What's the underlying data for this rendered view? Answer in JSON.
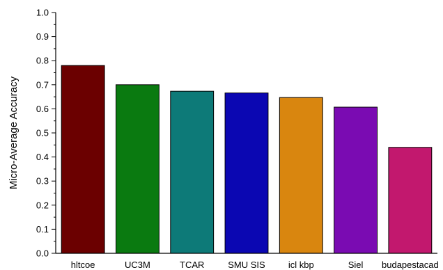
{
  "chart_data": {
    "type": "bar",
    "title": "",
    "xlabel": "",
    "ylabel": "Micro-Average Accuracy",
    "ylim": [
      0.0,
      1.0
    ],
    "y_ticks": [
      "0.0",
      "0.1",
      "0.2",
      "0.3",
      "0.4",
      "0.5",
      "0.6",
      "0.7",
      "0.8",
      "0.9",
      "1.0"
    ],
    "categories": [
      "hltcoe",
      "UC3M",
      "TCAR",
      "SMU  SIS",
      "icl  kbp",
      "Siel",
      "budapestacad"
    ],
    "values": [
      0.78,
      0.7,
      0.673,
      0.666,
      0.647,
      0.607,
      0.44
    ],
    "colors": [
      "#6b0000",
      "#0a7a10",
      "#0d7a78",
      "#0b07b2",
      "#d9860f",
      "#7a0bb2",
      "#c2186e"
    ],
    "grid": false,
    "legend": "none"
  }
}
